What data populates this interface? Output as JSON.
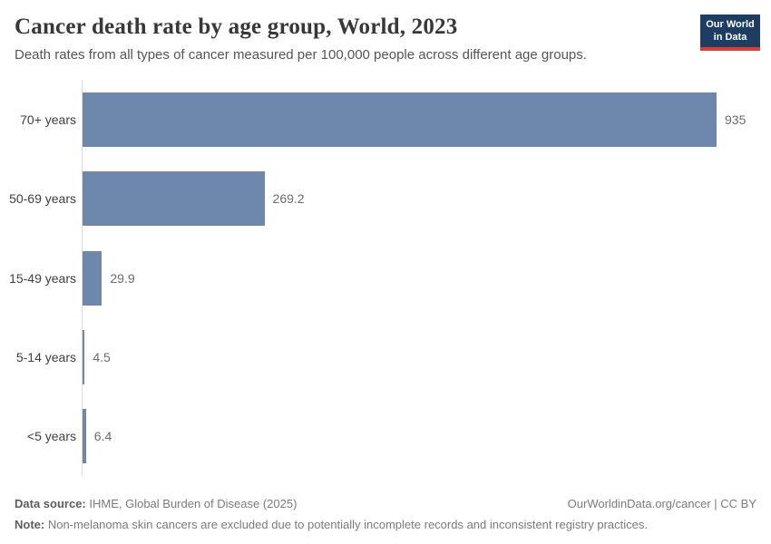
{
  "header": {
    "title": "Cancer death rate by age group, World, 2023",
    "subtitle": "Death rates from all types of cancer measured per 100,000 people across different age groups.",
    "logo": {
      "line1": "Our World",
      "line2": "in Data"
    }
  },
  "chart_data": {
    "type": "bar",
    "orientation": "horizontal",
    "title": "Cancer death rate by age group, World, 2023",
    "unit": "deaths per 100,000 people",
    "categories": [
      "70+ years",
      "50-69 years",
      "15-49 years",
      "5-14 years",
      "<5 years"
    ],
    "values": [
      935,
      269.2,
      29.9,
      4.5,
      6.4
    ],
    "value_labels": [
      "935",
      "269.2",
      "29.9",
      "4.5",
      "6.4"
    ],
    "xlim": [
      0,
      935
    ],
    "grid": false,
    "bar_color": "#6e87ad",
    "axis_line_color": "#dcdcdc"
  },
  "footer": {
    "data_source_label": "Data source:",
    "data_source_text": " IHME, Global Burden of Disease (2025)",
    "link_text": "OurWorldinData.org/cancer | CC BY",
    "note_label": "Note:",
    "note_text": " Non-melanoma skin cancers are excluded due to potentially incomplete records and inconsistent registry practices."
  },
  "colors": {
    "bar": "#6e87ad",
    "logo_bg": "#1d3d63",
    "logo_accent": "#dc3e36",
    "title_text": "#383838",
    "subtitle_text": "#555555",
    "footer_text": "#7b7b7b"
  }
}
